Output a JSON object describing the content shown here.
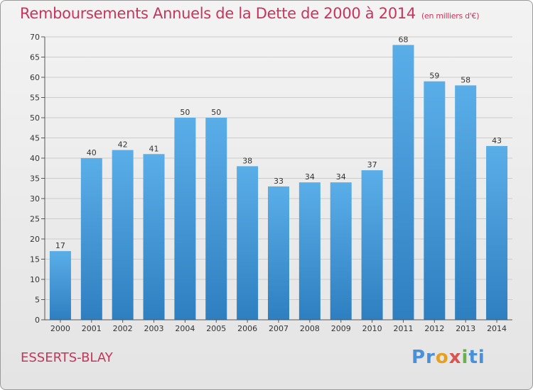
{
  "header": {
    "title": "Remboursements Annuels de la Dette de 2000 à 2014",
    "unit": "(en milliers d'€)"
  },
  "footer": {
    "location": "ESSERTS-BLAY",
    "logo_text": "Proxiti"
  },
  "colors": {
    "bar_top": "#5aaee8",
    "bar_bottom": "#2e7fc0",
    "title": "#c7345c",
    "grid": "#cccccc"
  },
  "chart_data": {
    "type": "bar",
    "title": "Remboursements Annuels de la Dette de 2000 à 2014",
    "categories": [
      "2000",
      "2001",
      "2002",
      "2003",
      "2004",
      "2005",
      "2006",
      "2007",
      "2008",
      "2009",
      "2010",
      "2011",
      "2012",
      "2013",
      "2014"
    ],
    "values": [
      17,
      40,
      42,
      41,
      50,
      50,
      38,
      33,
      34,
      34,
      37,
      68,
      59,
      58,
      43
    ],
    "xlabel": "",
    "ylabel": "",
    "ylim": [
      0,
      70
    ],
    "yticks": [
      0,
      5,
      10,
      15,
      20,
      25,
      30,
      35,
      40,
      45,
      50,
      55,
      60,
      65,
      70
    ],
    "grid": true,
    "data_labels": true
  }
}
